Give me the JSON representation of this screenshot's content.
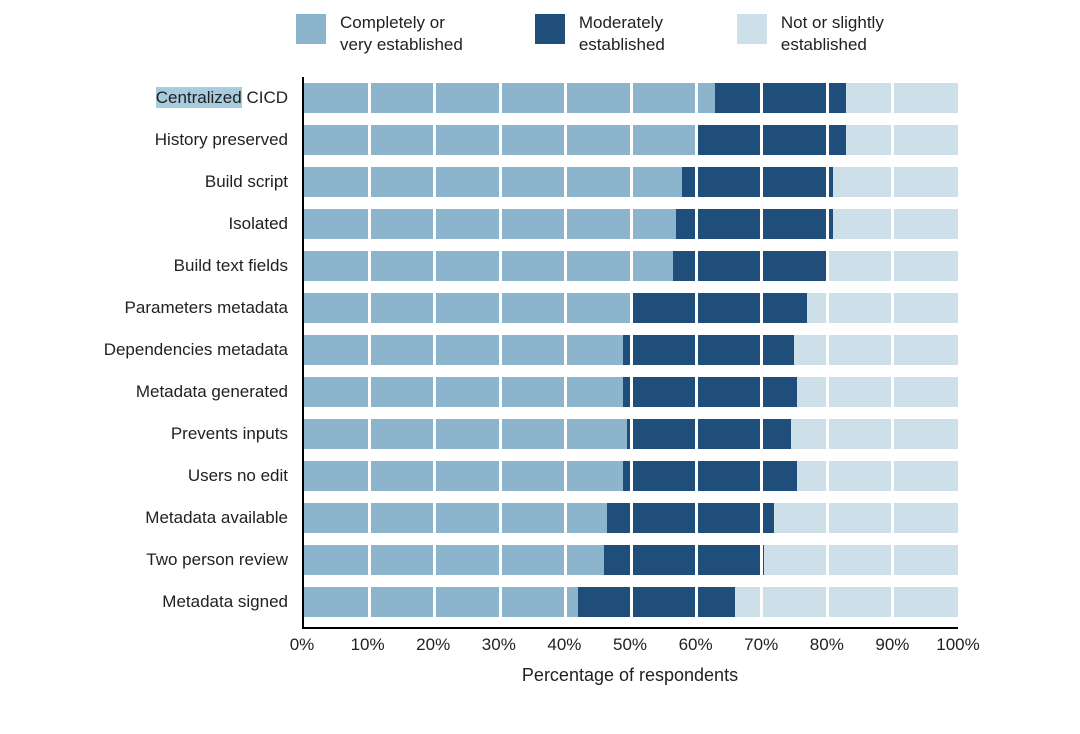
{
  "legend": {
    "items": [
      {
        "label": "Completely or\nvery established",
        "color": "#8CB4CD"
      },
      {
        "label": "Moderately\nestablished",
        "color": "#1E4E79"
      },
      {
        "label": "Not or slightly\nestablished",
        "color": "#CDDFE9"
      }
    ]
  },
  "chart_data": {
    "type": "bar",
    "orientation": "horizontal",
    "stacked": true,
    "title": "",
    "xlabel": "Percentage of respondents",
    "xlim": [
      0,
      100
    ],
    "grid": "vertical-white-lines-every-10pct",
    "legend_position": "top",
    "x_ticks": [
      "0%",
      "10%",
      "20%",
      "30%",
      "40%",
      "50%",
      "60%",
      "70%",
      "80%",
      "90%",
      "100%"
    ],
    "categories": [
      "Centralized CICD",
      "History preserved",
      "Build script",
      "Isolated",
      "Build text fields",
      "Parameters metadata",
      "Dependencies metadata",
      "Metadata generated",
      "Prevents inputs",
      "Users no edit",
      "Metadata available",
      "Two person review",
      "Metadata signed"
    ],
    "series": [
      {
        "name": "Completely or very established",
        "color": "#8CB4CD",
        "values": [
          63,
          60,
          58,
          57,
          56.5,
          50,
          49,
          49,
          49.5,
          49,
          46.5,
          46,
          42
        ]
      },
      {
        "name": "Moderately established",
        "color": "#1E4E79",
        "values": [
          20,
          23,
          23,
          24,
          23.5,
          27,
          26,
          26.5,
          25,
          26.5,
          25.5,
          24.5,
          24
        ]
      },
      {
        "name": "Not or slightly established",
        "color": "#CDDFE9",
        "values": [
          17,
          17,
          19,
          19,
          20,
          23,
          25,
          24.5,
          25.5,
          24.5,
          28,
          29.5,
          34
        ]
      }
    ],
    "highlight": {
      "category_index": 0,
      "word": "Centralized",
      "color": "#A9CBDE"
    }
  }
}
